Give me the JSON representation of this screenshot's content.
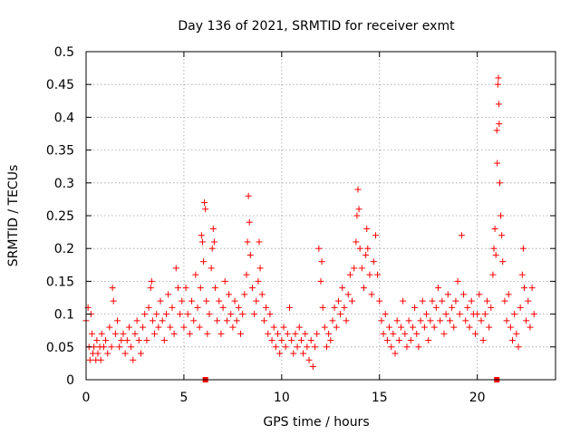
{
  "chart_data": {
    "type": "scatter",
    "title": "Day 136 of 2021, SRMTID for receiver exmt",
    "xlabel": "GPS time / hours",
    "ylabel": "SRMTID / TECUs",
    "xlim": [
      0,
      24
    ],
    "ylim": [
      0,
      0.5
    ],
    "xticks": [
      0,
      5,
      10,
      15,
      20
    ],
    "yticks": [
      0,
      0.05,
      0.1,
      0.15,
      0.2,
      0.25,
      0.3,
      0.35,
      0.4,
      0.45,
      0.5
    ],
    "grid": true,
    "marker": "plus",
    "color": "#ff0000",
    "axis_markers_x": [
      6.1,
      21.0
    ],
    "series": [
      {
        "name": "SRMTID",
        "points": [
          [
            0.0,
            0.09
          ],
          [
            0.1,
            0.11
          ],
          [
            0.15,
            0.05
          ],
          [
            0.2,
            0.03
          ],
          [
            0.25,
            0.1
          ],
          [
            0.3,
            0.07
          ],
          [
            0.35,
            0.04
          ],
          [
            0.4,
            0.05
          ],
          [
            0.5,
            0.03
          ],
          [
            0.55,
            0.06
          ],
          [
            0.6,
            0.04
          ],
          [
            0.7,
            0.05
          ],
          [
            0.75,
            0.03
          ],
          [
            0.8,
            0.07
          ],
          [
            0.9,
            0.05
          ],
          [
            1.0,
            0.06
          ],
          [
            1.1,
            0.04
          ],
          [
            1.2,
            0.08
          ],
          [
            1.3,
            0.05
          ],
          [
            1.35,
            0.14
          ],
          [
            1.4,
            0.12
          ],
          [
            1.5,
            0.07
          ],
          [
            1.6,
            0.09
          ],
          [
            1.7,
            0.05
          ],
          [
            1.8,
            0.06
          ],
          [
            1.9,
            0.07
          ],
          [
            2.0,
            0.04
          ],
          [
            2.1,
            0.06
          ],
          [
            2.2,
            0.08
          ],
          [
            2.3,
            0.05
          ],
          [
            2.4,
            0.03
          ],
          [
            2.5,
            0.07
          ],
          [
            2.6,
            0.09
          ],
          [
            2.7,
            0.06
          ],
          [
            2.8,
            0.04
          ],
          [
            2.9,
            0.08
          ],
          [
            3.0,
            0.1
          ],
          [
            3.1,
            0.06
          ],
          [
            3.2,
            0.11
          ],
          [
            3.3,
            0.14
          ],
          [
            3.35,
            0.15
          ],
          [
            3.4,
            0.09
          ],
          [
            3.5,
            0.07
          ],
          [
            3.6,
            0.1
          ],
          [
            3.7,
            0.08
          ],
          [
            3.8,
            0.12
          ],
          [
            3.9,
            0.09
          ],
          [
            4.0,
            0.06
          ],
          [
            4.1,
            0.1
          ],
          [
            4.2,
            0.13
          ],
          [
            4.3,
            0.08
          ],
          [
            4.4,
            0.11
          ],
          [
            4.5,
            0.07
          ],
          [
            4.6,
            0.17
          ],
          [
            4.7,
            0.14
          ],
          [
            4.8,
            0.1
          ],
          [
            4.9,
            0.12
          ],
          [
            5.0,
            0.08
          ],
          [
            5.1,
            0.14
          ],
          [
            5.2,
            0.1
          ],
          [
            5.3,
            0.07
          ],
          [
            5.4,
            0.12
          ],
          [
            5.5,
            0.09
          ],
          [
            5.6,
            0.16
          ],
          [
            5.7,
            0.11
          ],
          [
            5.8,
            0.08
          ],
          [
            5.85,
            0.14
          ],
          [
            5.9,
            0.22
          ],
          [
            5.95,
            0.21
          ],
          [
            6.0,
            0.18
          ],
          [
            6.05,
            0.27
          ],
          [
            6.1,
            0.26
          ],
          [
            6.15,
            0.12
          ],
          [
            6.2,
            0.07
          ],
          [
            6.3,
            0.1
          ],
          [
            6.4,
            0.17
          ],
          [
            6.45,
            0.2
          ],
          [
            6.5,
            0.23
          ],
          [
            6.55,
            0.21
          ],
          [
            6.6,
            0.14
          ],
          [
            6.7,
            0.09
          ],
          [
            6.8,
            0.12
          ],
          [
            6.9,
            0.07
          ],
          [
            7.0,
            0.11
          ],
          [
            7.1,
            0.15
          ],
          [
            7.2,
            0.09
          ],
          [
            7.3,
            0.13
          ],
          [
            7.4,
            0.1
          ],
          [
            7.5,
            0.08
          ],
          [
            7.6,
            0.12
          ],
          [
            7.7,
            0.09
          ],
          [
            7.8,
            0.11
          ],
          [
            7.9,
            0.07
          ],
          [
            8.0,
            0.1
          ],
          [
            8.1,
            0.13
          ],
          [
            8.2,
            0.16
          ],
          [
            8.25,
            0.21
          ],
          [
            8.3,
            0.28
          ],
          [
            8.35,
            0.24
          ],
          [
            8.4,
            0.19
          ],
          [
            8.5,
            0.14
          ],
          [
            8.6,
            0.1
          ],
          [
            8.7,
            0.12
          ],
          [
            8.8,
            0.15
          ],
          [
            8.85,
            0.21
          ],
          [
            8.9,
            0.17
          ],
          [
            9.0,
            0.13
          ],
          [
            9.1,
            0.09
          ],
          [
            9.2,
            0.11
          ],
          [
            9.3,
            0.07
          ],
          [
            9.4,
            0.1
          ],
          [
            9.5,
            0.06
          ],
          [
            9.6,
            0.08
          ],
          [
            9.7,
            0.05
          ],
          [
            9.8,
            0.07
          ],
          [
            9.9,
            0.04
          ],
          [
            10.0,
            0.06
          ],
          [
            10.1,
            0.08
          ],
          [
            10.2,
            0.05
          ],
          [
            10.3,
            0.07
          ],
          [
            10.4,
            0.11
          ],
          [
            10.5,
            0.06
          ],
          [
            10.6,
            0.04
          ],
          [
            10.7,
            0.07
          ],
          [
            10.8,
            0.05
          ],
          [
            10.9,
            0.08
          ],
          [
            11.0,
            0.06
          ],
          [
            11.1,
            0.04
          ],
          [
            11.2,
            0.07
          ],
          [
            11.3,
            0.05
          ],
          [
            11.4,
            0.03
          ],
          [
            11.5,
            0.06
          ],
          [
            11.6,
            0.02
          ],
          [
            11.7,
            0.05
          ],
          [
            11.8,
            0.07
          ],
          [
            11.9,
            0.2
          ],
          [
            12.0,
            0.15
          ],
          [
            12.05,
            0.18
          ],
          [
            12.1,
            0.11
          ],
          [
            12.2,
            0.08
          ],
          [
            12.3,
            0.05
          ],
          [
            12.4,
            0.07
          ],
          [
            12.5,
            0.06
          ],
          [
            12.6,
            0.09
          ],
          [
            12.7,
            0.11
          ],
          [
            12.8,
            0.08
          ],
          [
            12.9,
            0.12
          ],
          [
            13.0,
            0.1
          ],
          [
            13.1,
            0.14
          ],
          [
            13.2,
            0.11
          ],
          [
            13.3,
            0.09
          ],
          [
            13.4,
            0.13
          ],
          [
            13.5,
            0.16
          ],
          [
            13.6,
            0.12
          ],
          [
            13.7,
            0.17
          ],
          [
            13.8,
            0.21
          ],
          [
            13.85,
            0.25
          ],
          [
            13.9,
            0.29
          ],
          [
            13.95,
            0.26
          ],
          [
            14.0,
            0.2
          ],
          [
            14.1,
            0.17
          ],
          [
            14.2,
            0.14
          ],
          [
            14.3,
            0.19
          ],
          [
            14.35,
            0.23
          ],
          [
            14.4,
            0.2
          ],
          [
            14.5,
            0.16
          ],
          [
            14.6,
            0.13
          ],
          [
            14.7,
            0.18
          ],
          [
            14.8,
            0.22
          ],
          [
            14.9,
            0.16
          ],
          [
            15.0,
            0.12
          ],
          [
            15.1,
            0.09
          ],
          [
            15.2,
            0.07
          ],
          [
            15.3,
            0.1
          ],
          [
            15.4,
            0.06
          ],
          [
            15.5,
            0.08
          ],
          [
            15.6,
            0.05
          ],
          [
            15.7,
            0.07
          ],
          [
            15.8,
            0.04
          ],
          [
            15.9,
            0.09
          ],
          [
            16.0,
            0.06
          ],
          [
            16.1,
            0.08
          ],
          [
            16.2,
            0.12
          ],
          [
            16.3,
            0.07
          ],
          [
            16.4,
            0.05
          ],
          [
            16.5,
            0.09
          ],
          [
            16.6,
            0.06
          ],
          [
            16.7,
            0.08
          ],
          [
            16.8,
            0.11
          ],
          [
            16.9,
            0.07
          ],
          [
            17.0,
            0.05
          ],
          [
            17.1,
            0.09
          ],
          [
            17.2,
            0.12
          ],
          [
            17.3,
            0.08
          ],
          [
            17.4,
            0.1
          ],
          [
            17.5,
            0.06
          ],
          [
            17.6,
            0.09
          ],
          [
            17.7,
            0.12
          ],
          [
            17.8,
            0.08
          ],
          [
            17.9,
            0.11
          ],
          [
            18.0,
            0.14
          ],
          [
            18.1,
            0.09
          ],
          [
            18.2,
            0.12
          ],
          [
            18.3,
            0.07
          ],
          [
            18.4,
            0.1
          ],
          [
            18.5,
            0.13
          ],
          [
            18.6,
            0.09
          ],
          [
            18.7,
            0.11
          ],
          [
            18.8,
            0.08
          ],
          [
            18.9,
            0.12
          ],
          [
            19.0,
            0.15
          ],
          [
            19.1,
            0.1
          ],
          [
            19.2,
            0.22
          ],
          [
            19.3,
            0.13
          ],
          [
            19.4,
            0.09
          ],
          [
            19.5,
            0.11
          ],
          [
            19.6,
            0.08
          ],
          [
            19.7,
            0.12
          ],
          [
            19.8,
            0.1
          ],
          [
            19.9,
            0.07
          ],
          [
            20.0,
            0.1
          ],
          [
            20.1,
            0.13
          ],
          [
            20.2,
            0.09
          ],
          [
            20.3,
            0.06
          ],
          [
            20.4,
            0.1
          ],
          [
            20.5,
            0.12
          ],
          [
            20.6,
            0.08
          ],
          [
            20.7,
            0.11
          ],
          [
            20.8,
            0.16
          ],
          [
            20.85,
            0.2
          ],
          [
            20.9,
            0.23
          ],
          [
            20.95,
            0.19
          ],
          [
            21.0,
            0.38
          ],
          [
            21.02,
            0.33
          ],
          [
            21.05,
            0.45
          ],
          [
            21.08,
            0.46
          ],
          [
            21.1,
            0.42
          ],
          [
            21.12,
            0.39
          ],
          [
            21.15,
            0.3
          ],
          [
            21.2,
            0.25
          ],
          [
            21.25,
            0.22
          ],
          [
            21.3,
            0.18
          ],
          [
            21.4,
            0.12
          ],
          [
            21.5,
            0.09
          ],
          [
            21.6,
            0.13
          ],
          [
            21.7,
            0.08
          ],
          [
            21.8,
            0.06
          ],
          [
            21.9,
            0.1
          ],
          [
            22.0,
            0.07
          ],
          [
            22.1,
            0.05
          ],
          [
            22.2,
            0.11
          ],
          [
            22.3,
            0.16
          ],
          [
            22.35,
            0.2
          ],
          [
            22.4,
            0.14
          ],
          [
            22.5,
            0.09
          ],
          [
            22.6,
            0.12
          ],
          [
            22.7,
            0.08
          ],
          [
            22.8,
            0.14
          ],
          [
            22.9,
            0.1
          ]
        ]
      }
    ]
  }
}
